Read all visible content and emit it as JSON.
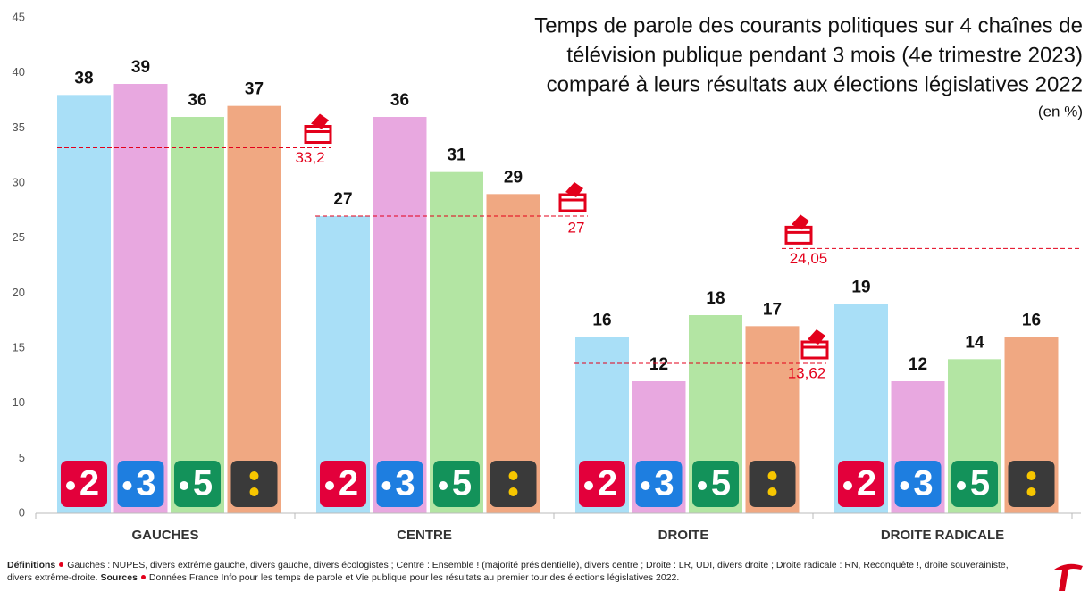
{
  "chart_data": {
    "type": "bar",
    "title": [
      "Temps de parole des courants politiques sur 4 chaînes de",
      "télévision publique pendant 3 mois (4e trimestre 2023)",
      "comparé à leurs résultats aux élections législatives 2022"
    ],
    "subtitle": "(en %)",
    "categories": [
      "GAUCHES",
      "CENTRE",
      "DROITE",
      "DROITE RADICALE"
    ],
    "series": [
      {
        "name": "2",
        "color": "#a9dff7",
        "logo_color": "#e3003b",
        "values": [
          38,
          27,
          16,
          19
        ]
      },
      {
        "name": "3",
        "color": "#e8a8e0",
        "logo_color": "#1e7ee0",
        "values": [
          39,
          36,
          12,
          12
        ]
      },
      {
        "name": "5",
        "color": "#b3e5a3",
        "logo_color": "#13925a",
        "values": [
          36,
          31,
          18,
          14
        ]
      },
      {
        "color": "#f0a882",
        "logo_color": "#3a3a3a",
        "values": [
          37,
          29,
          17,
          16
        ]
      }
    ],
    "reference_lines": {
      "color": "#e3001b",
      "values": [
        33.2,
        27,
        13.62,
        24.05
      ],
      "value_labels": [
        "33,2",
        "27",
        "13,62",
        "24,05"
      ]
    },
    "ylim": [
      0,
      45
    ],
    "yticks": [
      0,
      5,
      10,
      15,
      20,
      25,
      30,
      35,
      40,
      45
    ],
    "footnote": {
      "definitions_label": "Définitions",
      "definitions": "Gauches : NUPES, divers extrême gauche, divers gauche, divers écologistes ; Centre : Ensemble ! (majorité présidentielle), divers centre ; Droite : LR, UDI, divers droite ; Droite radicale : RN, Reconquête !, droite souverainiste, divers extrême-droite.",
      "sources_label": "Sources",
      "sources": "Données France Info pour les temps de parole et Vie publique pour les résultats au premier tour des élections législatives 2022."
    }
  }
}
